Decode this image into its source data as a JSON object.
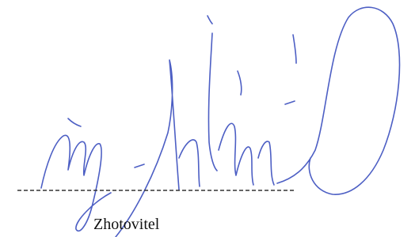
{
  "caption": "Zhotovitel"
}
